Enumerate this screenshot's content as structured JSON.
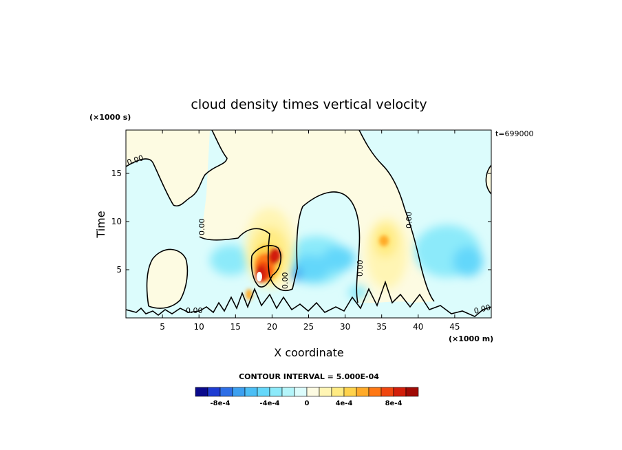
{
  "chart_data": {
    "type": "heatmap",
    "title": "cloud density times vertical velocity",
    "xlabel": "X coordinate",
    "ylabel": "Time",
    "x_units": "(×1000 m)",
    "y_units": "(×1000 s)",
    "time_stamp": "t=699000",
    "xlim": [
      0,
      50
    ],
    "ylim": [
      0,
      19.5
    ],
    "x_ticks": [
      "5",
      "10",
      "15",
      "20",
      "25",
      "30",
      "35",
      "40",
      "45"
    ],
    "y_ticks": [
      "5",
      "10",
      "15"
    ],
    "contour_label": "0.00",
    "contour_interval_text": "CONTOUR INTERVAL = 5.000E-04",
    "colorbar": {
      "tick_labels": [
        "-8e-4",
        "-4e-4",
        "0",
        "4e-4",
        "8e-4"
      ],
      "colors": [
        "#0a0a8c",
        "#1e3cd2",
        "#2d6ee6",
        "#3ca0f0",
        "#4bbef5",
        "#64d7fa",
        "#8ceafa",
        "#b4f5fa",
        "#dcfcfc",
        "#fdfbe2",
        "#fff5b4",
        "#ffeb82",
        "#ffd24b",
        "#ffaa28",
        "#ff7814",
        "#f0460f",
        "#d21e0a",
        "#a00a05"
      ]
    },
    "features": [
      {
        "kind": "positive",
        "x": 18.5,
        "y": 5.5,
        "peak": "8e-4"
      },
      {
        "kind": "positive",
        "x": 35.5,
        "y": 7.5,
        "peak": "4e-4"
      },
      {
        "kind": "negative",
        "x": 23,
        "y": 4.5,
        "peak": "-4e-4"
      },
      {
        "kind": "negative",
        "x": 32,
        "y": 5.5,
        "peak": "-3e-4"
      },
      {
        "kind": "negative",
        "x": 44,
        "y": 7,
        "peak": "-3e-4"
      }
    ]
  }
}
